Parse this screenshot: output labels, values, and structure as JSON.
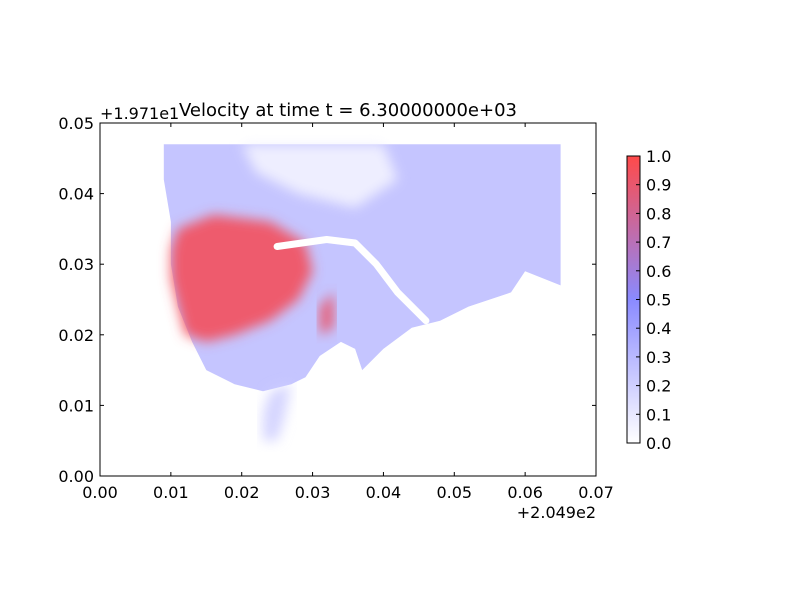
{
  "chart_data": {
    "type": "heatmap",
    "title": "Velocity at time t = 6.30000000e+03",
    "xlabel": "",
    "ylabel": "",
    "xlim": [
      0.0,
      0.07
    ],
    "ylim": [
      0.0,
      0.05
    ],
    "x_ticks": [
      "0.00",
      "0.01",
      "0.02",
      "0.03",
      "0.04",
      "0.05",
      "0.06",
      "0.07"
    ],
    "y_ticks": [
      "0.00",
      "0.01",
      "0.02",
      "0.03",
      "0.04",
      "0.05"
    ],
    "x_offset": "+2.049e2",
    "y_offset": "+1.971e1",
    "colorbar": {
      "range": [
        0.0,
        1.0
      ],
      "ticks": [
        "0.0",
        "0.1",
        "0.2",
        "0.3",
        "0.4",
        "0.5",
        "0.6",
        "0.7",
        "0.8",
        "0.9",
        "1.0"
      ],
      "colors": [
        "#ffffff",
        "#8a8aff",
        "#ff4a4a"
      ]
    },
    "regions": [
      {
        "name": "domain",
        "value": 0.25,
        "polygon": [
          [
            0.009,
            0.047
          ],
          [
            0.065,
            0.047
          ],
          [
            0.065,
            0.027
          ],
          [
            0.06,
            0.029
          ],
          [
            0.058,
            0.026
          ],
          [
            0.052,
            0.024
          ],
          [
            0.048,
            0.022
          ],
          [
            0.044,
            0.021
          ],
          [
            0.04,
            0.018
          ],
          [
            0.037,
            0.015
          ],
          [
            0.036,
            0.018
          ],
          [
            0.034,
            0.019
          ],
          [
            0.031,
            0.017
          ],
          [
            0.029,
            0.014
          ],
          [
            0.027,
            0.013
          ],
          [
            0.023,
            0.012
          ],
          [
            0.019,
            0.013
          ],
          [
            0.015,
            0.015
          ],
          [
            0.013,
            0.019
          ],
          [
            0.011,
            0.024
          ],
          [
            0.01,
            0.03
          ],
          [
            0.01,
            0.036
          ],
          [
            0.009,
            0.042
          ]
        ]
      },
      {
        "name": "open-water",
        "value": 0.05,
        "polygon": [
          [
            0.02,
            0.047
          ],
          [
            0.04,
            0.047
          ],
          [
            0.042,
            0.042
          ],
          [
            0.036,
            0.038
          ],
          [
            0.028,
            0.04
          ],
          [
            0.022,
            0.043
          ]
        ]
      },
      {
        "name": "fast-core",
        "value": 0.95,
        "polygon": [
          [
            0.011,
            0.035
          ],
          [
            0.016,
            0.037
          ],
          [
            0.024,
            0.036
          ],
          [
            0.029,
            0.033
          ],
          [
            0.03,
            0.029
          ],
          [
            0.028,
            0.025
          ],
          [
            0.024,
            0.022
          ],
          [
            0.019,
            0.02
          ],
          [
            0.015,
            0.019
          ],
          [
            0.012,
            0.02
          ],
          [
            0.011,
            0.024
          ],
          [
            0.01,
            0.028
          ],
          [
            0.01,
            0.032
          ]
        ]
      },
      {
        "name": "jet",
        "value": 0.9,
        "polygon": [
          [
            0.031,
            0.024
          ],
          [
            0.033,
            0.026
          ],
          [
            0.033,
            0.021
          ],
          [
            0.031,
            0.02
          ]
        ]
      },
      {
        "name": "channel-plume",
        "value": 0.2,
        "polygon": [
          [
            0.024,
            0.012
          ],
          [
            0.027,
            0.013
          ],
          [
            0.026,
            0.008
          ],
          [
            0.025,
            0.005
          ],
          [
            0.023,
            0.005
          ],
          [
            0.023,
            0.009
          ]
        ]
      }
    ],
    "breakwater": [
      [
        0.025,
        0.0325
      ],
      [
        0.032,
        0.0335
      ],
      [
        0.036,
        0.033
      ],
      [
        0.039,
        0.03
      ],
      [
        0.042,
        0.026
      ],
      [
        0.046,
        0.022
      ]
    ]
  }
}
